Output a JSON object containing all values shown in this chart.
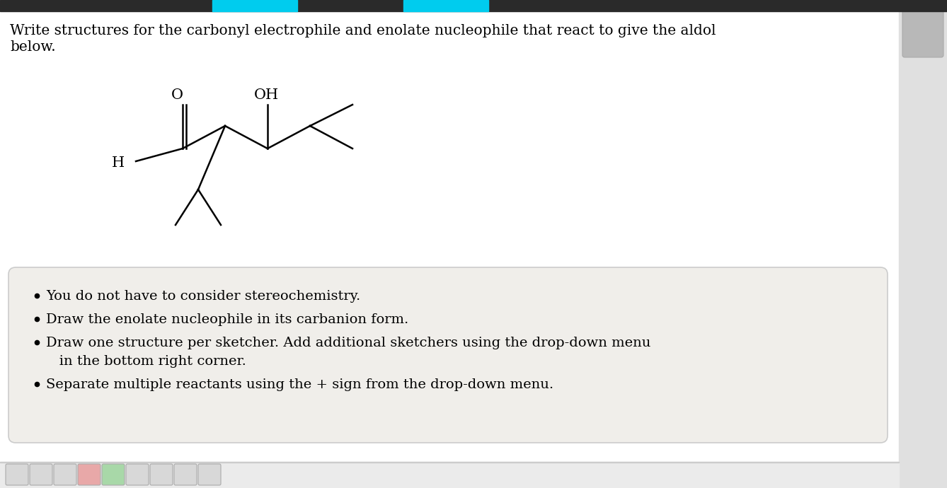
{
  "background_color": "#ffffff",
  "title_text_line1": "Write structures for the carbonyl electrophile and enolate nucleophile that react to give the aldol",
  "title_text_line2": "below.",
  "title_fontsize": 14.5,
  "title_font": "DejaVu Serif",
  "bullet_points": [
    "You do not have to consider stereochemistry.",
    "Draw the enolate nucleophile in its carbanion form.",
    "Draw one structure per sketcher. Add additional sketchers using the drop-down menu",
    "   in the bottom right corner.",
    "Separate multiple reactants using the + sign from the drop-down menu."
  ],
  "bullet_flags": [
    true,
    true,
    true,
    false,
    true
  ],
  "bullet_fontsize": 14.0,
  "box_bg": "#f0eeea",
  "box_border": "#cccccc",
  "top_bar_color": "#2a2a2a",
  "tab_color": "#00ccee",
  "scrollbar_bg": "#d8d8d8",
  "scrollbar_thumb": "#b8b8b8",
  "right_panel_color": "#e0e0e0",
  "toolbar_bg": "#ebebeb",
  "toolbar_border": "#cccccc"
}
